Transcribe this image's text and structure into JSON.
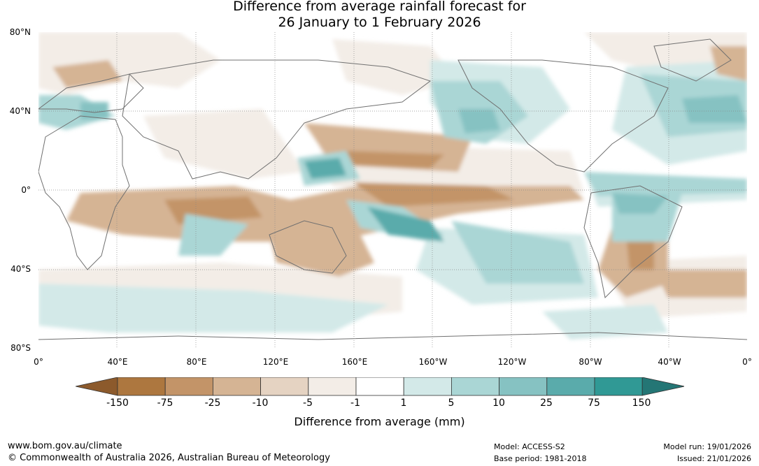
{
  "title": {
    "line1": "Difference from average rainfall forecast for",
    "line2": "26 January to 1 February 2026"
  },
  "map": {
    "lat_labels": [
      "80°N",
      "40°N",
      "0°",
      "40°S",
      "80°S"
    ],
    "lon_labels": [
      "0°",
      "40°E",
      "80°E",
      "120°E",
      "160°E",
      "160°W",
      "120°W",
      "80°W",
      "40°W",
      "0°"
    ]
  },
  "colorbar": {
    "ticks": [
      "-150",
      "-75",
      "-25",
      "-10",
      "-5",
      "-1",
      "1",
      "5",
      "10",
      "25",
      "75",
      "150"
    ],
    "colors": [
      "#8c5a2c",
      "#ad773f",
      "#c39468",
      "#d5b494",
      "#e5d3c2",
      "#f3ede7",
      "#ffffff",
      "#d3e9e8",
      "#aad6d5",
      "#86c2c2",
      "#5aabab",
      "#309995",
      "#247675"
    ],
    "label": "Difference from average (mm)"
  },
  "footer": {
    "website": "www.bom.gov.au/climate",
    "copyright": "© Commonwealth of Australia 2026, Australian Bureau of Meteorology",
    "model": "Model: ACCESS-S2",
    "base_period": "Base period: 1981-2018",
    "model_run": "Model run: 19/01/2026",
    "issued": "Issued: 21/01/2026"
  }
}
